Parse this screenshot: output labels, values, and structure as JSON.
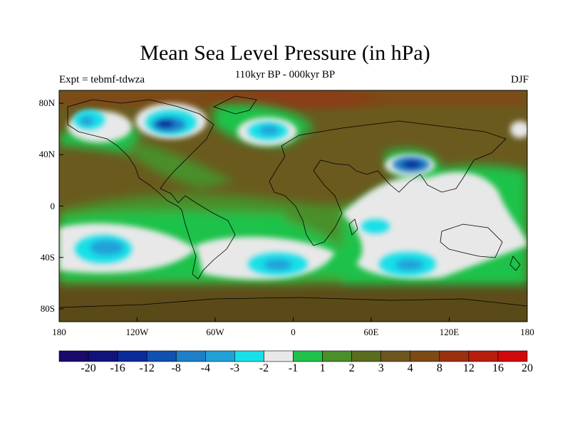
{
  "chart_data": {
    "type": "heatmap",
    "title": "Mean Sea Level Pressure (in hPa)",
    "subtitle": "110kyr BP - 000kyr BP",
    "left_label": "Expt = tebmf-tdwza",
    "right_label": "DJF",
    "x_ticks": [
      "180",
      "120W",
      "60W",
      "0",
      "60E",
      "120E",
      "180"
    ],
    "y_ticks": [
      "80N",
      "40N",
      "0",
      "40S",
      "80S"
    ],
    "x_range": [
      -180,
      180
    ],
    "y_range": [
      -90,
      90
    ],
    "colorbar": {
      "colors": [
        "#1a0a6b",
        "#10137a",
        "#0a2a9a",
        "#1050b0",
        "#1e7ec8",
        "#22a0d8",
        "#18e0e8",
        "#e8e8e8",
        "#1fc24a",
        "#4a8f2a",
        "#5a6d1e",
        "#6e5520",
        "#7e4a14",
        "#9a3010",
        "#b81e0c",
        "#d00a0a"
      ],
      "labels": [
        "-20",
        "-16",
        "-12",
        "-8",
        "-4",
        "-3",
        "-2",
        "-1",
        "1",
        "2",
        "3",
        "4",
        "8",
        "12",
        "16",
        "20"
      ]
    },
    "anomalies": [
      {
        "lon": -170,
        "lat": 62,
        "value": -3
      },
      {
        "lon": -100,
        "lat": 58,
        "value": -10
      },
      {
        "lon": -15,
        "lat": 57,
        "value": -4
      },
      {
        "lon": 88,
        "lat": 32,
        "value": -10
      },
      {
        "lon": -145,
        "lat": -32,
        "value": -3
      },
      {
        "lon": -12,
        "lat": -44,
        "value": -3
      },
      {
        "lon": 92,
        "lat": -44,
        "value": -3
      },
      {
        "lon": 60,
        "lat": -18,
        "value": -2
      },
      {
        "lon": 130,
        "lat": 0,
        "value": 1
      }
    ]
  }
}
